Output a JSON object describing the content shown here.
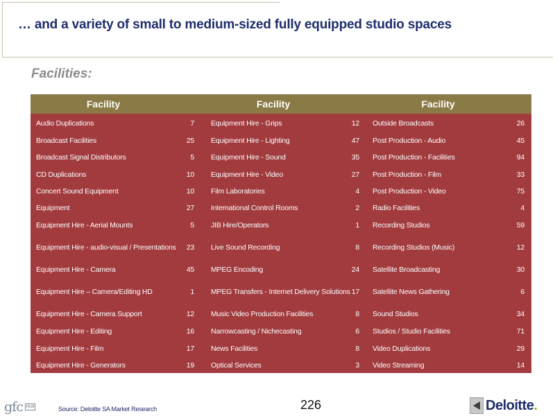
{
  "title": "… and a variety of small to medium-sized fully equipped studio spaces",
  "subtitle": "Facilities:",
  "table": {
    "headers": [
      "Facility",
      "Facility",
      "Facility"
    ],
    "rows": [
      {
        "n1": "Audio Duplications",
        "v1": "7",
        "n2": "Equipment Hire - Grips",
        "v2": "12",
        "n3": "Outside Broadcasts",
        "v3": "26"
      },
      {
        "n1": "Broadcast Facilities",
        "v1": "25",
        "n2": "Equipment Hire - Lighting",
        "v2": "47",
        "n3": "Post Production - Audio",
        "v3": "45"
      },
      {
        "n1": "Broadcast Signal Distributors",
        "v1": "5",
        "n2": "Equipment Hire - Sound",
        "v2": "35",
        "n3": "Post Production - Facilities",
        "v3": "94"
      },
      {
        "n1": "CD Duplications",
        "v1": "10",
        "n2": "Equipment Hire - Video",
        "v2": "27",
        "n3": "Post Production - Film",
        "v3": "33"
      },
      {
        "n1": "Concert Sound Equipment",
        "v1": "10",
        "n2": "Film Laboratories",
        "v2": "4",
        "n3": "Post Production - Video",
        "v3": "75"
      },
      {
        "n1": "Equipment",
        "v1": "27",
        "n2": "International Control Rooms",
        "v2": "2",
        "n3": "Radio Facilities",
        "v3": "4"
      },
      {
        "n1": "Equipment Hire - Aerial Mounts",
        "v1": "5",
        "n2": "JIB Hire/Operators",
        "v2": "1",
        "n3": "Recording Studios",
        "v3": "59"
      },
      {
        "n1": "Equipment Hire - audio-visual / Presentations",
        "v1": "23",
        "n2": "Live Sound Recording",
        "v2": "8",
        "n3": "Recording Studios (Music)",
        "v3": "12"
      },
      {
        "n1": "Equipment Hire - Camera",
        "v1": "45",
        "n2": "MPEG Encoding",
        "v2": "24",
        "n3": "Satellite Broadcasting",
        "v3": "30"
      },
      {
        "n1": "Equipment Hire – Camera/Editing HD",
        "v1": "1",
        "n2": "MPEG Transfers - Internet Delivery Solutions",
        "v2": "17",
        "n3": "Satellite News Gathering",
        "v3": "6"
      },
      {
        "n1": "Equipment Hire - Camera Support",
        "v1": "12",
        "n2": "Music Video Production Facilities",
        "v2": "8",
        "n3": "Sound Studios",
        "v3": "34"
      },
      {
        "n1": "Equipment Hire - Editing",
        "v1": "16",
        "n2": "Narrowcasting / Nichecasting",
        "v2": "6",
        "n3": "Studios / Studio Facilities",
        "v3": "71"
      },
      {
        "n1": "Equipment Hire - Film",
        "v1": "17",
        "n2": "News Facilities",
        "v2": "8",
        "n3": "Video Duplications",
        "v3": "29"
      },
      {
        "n1": "Equipment Hire - Generators",
        "v1": "19",
        "n2": "Optical Services",
        "v2": "3",
        "n3": "Video Streaming",
        "v3": "14"
      }
    ]
  },
  "footer": {
    "source": "Source: Deloitte SA Market Research",
    "page_number": "226",
    "gfc_logo_text": "gfc",
    "gfc_box_text": "FILM",
    "deloitte_text": "Deloitte",
    "deloitte_dot": "."
  },
  "colors": {
    "title": "#1f2d6b",
    "table_body": "#a13b3e",
    "table_header": "#8a7a45",
    "deloitte_green": "#86bc25"
  }
}
